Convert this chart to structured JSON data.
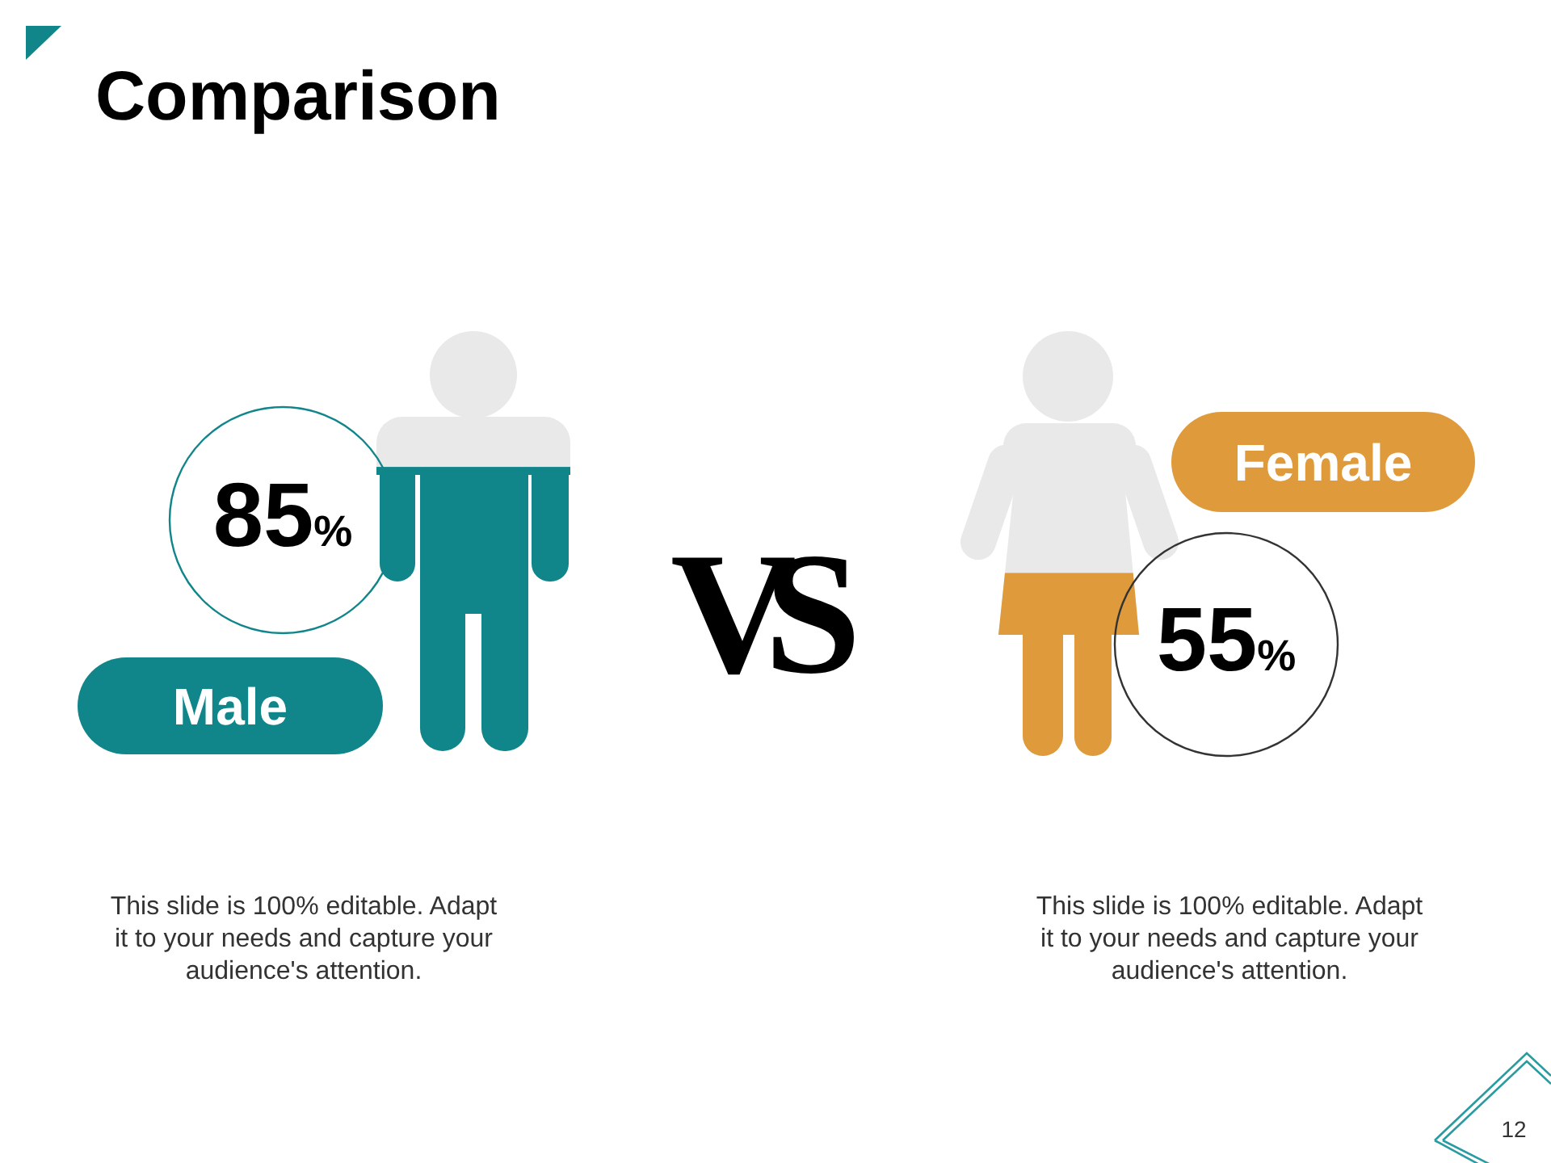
{
  "chart_data": {
    "type": "other",
    "title": "Comparison",
    "categories": [
      "Male",
      "Female"
    ],
    "values": [
      85,
      55
    ],
    "colors": [
      "#10868a",
      "#df9a3b"
    ],
    "value_labels": [
      "85%",
      "55%"
    ],
    "annotations": [
      "VS",
      "This slide is 100% editable. Adapt it to your needs and capture your audience's attention.",
      "This slide is 100% editable. Adapt it to your needs and capture your audience's attention.",
      "12"
    ]
  }
}
